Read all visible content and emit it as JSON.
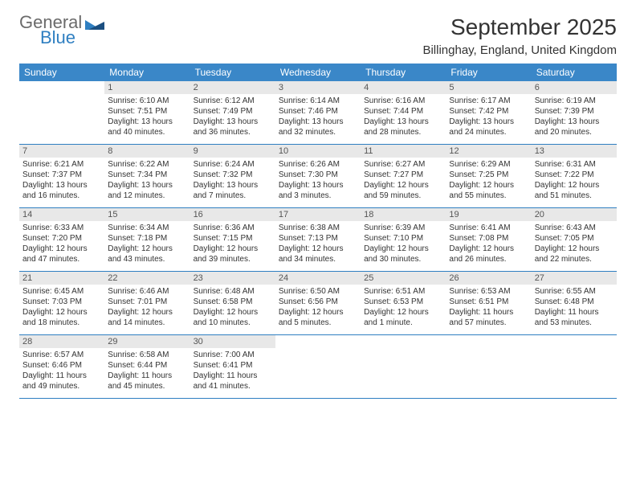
{
  "logo": {
    "general": "General",
    "blue": "Blue"
  },
  "title": "September 2025",
  "location": "Billinghay, England, United Kingdom",
  "colors": {
    "header_bg": "#3a87c8",
    "header_text": "#ffffff",
    "daynum_bg": "#e8e8e8",
    "border": "#2f7fc1",
    "logo_gray": "#6b6b6b",
    "logo_blue": "#2f7fc1",
    "text": "#333333"
  },
  "weekdays": [
    "Sunday",
    "Monday",
    "Tuesday",
    "Wednesday",
    "Thursday",
    "Friday",
    "Saturday"
  ],
  "weeks": [
    [
      {
        "num": "",
        "sunrise": "",
        "sunset": "",
        "daylight": ""
      },
      {
        "num": "1",
        "sunrise": "Sunrise: 6:10 AM",
        "sunset": "Sunset: 7:51 PM",
        "daylight": "Daylight: 13 hours and 40 minutes."
      },
      {
        "num": "2",
        "sunrise": "Sunrise: 6:12 AM",
        "sunset": "Sunset: 7:49 PM",
        "daylight": "Daylight: 13 hours and 36 minutes."
      },
      {
        "num": "3",
        "sunrise": "Sunrise: 6:14 AM",
        "sunset": "Sunset: 7:46 PM",
        "daylight": "Daylight: 13 hours and 32 minutes."
      },
      {
        "num": "4",
        "sunrise": "Sunrise: 6:16 AM",
        "sunset": "Sunset: 7:44 PM",
        "daylight": "Daylight: 13 hours and 28 minutes."
      },
      {
        "num": "5",
        "sunrise": "Sunrise: 6:17 AM",
        "sunset": "Sunset: 7:42 PM",
        "daylight": "Daylight: 13 hours and 24 minutes."
      },
      {
        "num": "6",
        "sunrise": "Sunrise: 6:19 AM",
        "sunset": "Sunset: 7:39 PM",
        "daylight": "Daylight: 13 hours and 20 minutes."
      }
    ],
    [
      {
        "num": "7",
        "sunrise": "Sunrise: 6:21 AM",
        "sunset": "Sunset: 7:37 PM",
        "daylight": "Daylight: 13 hours and 16 minutes."
      },
      {
        "num": "8",
        "sunrise": "Sunrise: 6:22 AM",
        "sunset": "Sunset: 7:34 PM",
        "daylight": "Daylight: 13 hours and 12 minutes."
      },
      {
        "num": "9",
        "sunrise": "Sunrise: 6:24 AM",
        "sunset": "Sunset: 7:32 PM",
        "daylight": "Daylight: 13 hours and 7 minutes."
      },
      {
        "num": "10",
        "sunrise": "Sunrise: 6:26 AM",
        "sunset": "Sunset: 7:30 PM",
        "daylight": "Daylight: 13 hours and 3 minutes."
      },
      {
        "num": "11",
        "sunrise": "Sunrise: 6:27 AM",
        "sunset": "Sunset: 7:27 PM",
        "daylight": "Daylight: 12 hours and 59 minutes."
      },
      {
        "num": "12",
        "sunrise": "Sunrise: 6:29 AM",
        "sunset": "Sunset: 7:25 PM",
        "daylight": "Daylight: 12 hours and 55 minutes."
      },
      {
        "num": "13",
        "sunrise": "Sunrise: 6:31 AM",
        "sunset": "Sunset: 7:22 PM",
        "daylight": "Daylight: 12 hours and 51 minutes."
      }
    ],
    [
      {
        "num": "14",
        "sunrise": "Sunrise: 6:33 AM",
        "sunset": "Sunset: 7:20 PM",
        "daylight": "Daylight: 12 hours and 47 minutes."
      },
      {
        "num": "15",
        "sunrise": "Sunrise: 6:34 AM",
        "sunset": "Sunset: 7:18 PM",
        "daylight": "Daylight: 12 hours and 43 minutes."
      },
      {
        "num": "16",
        "sunrise": "Sunrise: 6:36 AM",
        "sunset": "Sunset: 7:15 PM",
        "daylight": "Daylight: 12 hours and 39 minutes."
      },
      {
        "num": "17",
        "sunrise": "Sunrise: 6:38 AM",
        "sunset": "Sunset: 7:13 PM",
        "daylight": "Daylight: 12 hours and 34 minutes."
      },
      {
        "num": "18",
        "sunrise": "Sunrise: 6:39 AM",
        "sunset": "Sunset: 7:10 PM",
        "daylight": "Daylight: 12 hours and 30 minutes."
      },
      {
        "num": "19",
        "sunrise": "Sunrise: 6:41 AM",
        "sunset": "Sunset: 7:08 PM",
        "daylight": "Daylight: 12 hours and 26 minutes."
      },
      {
        "num": "20",
        "sunrise": "Sunrise: 6:43 AM",
        "sunset": "Sunset: 7:05 PM",
        "daylight": "Daylight: 12 hours and 22 minutes."
      }
    ],
    [
      {
        "num": "21",
        "sunrise": "Sunrise: 6:45 AM",
        "sunset": "Sunset: 7:03 PM",
        "daylight": "Daylight: 12 hours and 18 minutes."
      },
      {
        "num": "22",
        "sunrise": "Sunrise: 6:46 AM",
        "sunset": "Sunset: 7:01 PM",
        "daylight": "Daylight: 12 hours and 14 minutes."
      },
      {
        "num": "23",
        "sunrise": "Sunrise: 6:48 AM",
        "sunset": "Sunset: 6:58 PM",
        "daylight": "Daylight: 12 hours and 10 minutes."
      },
      {
        "num": "24",
        "sunrise": "Sunrise: 6:50 AM",
        "sunset": "Sunset: 6:56 PM",
        "daylight": "Daylight: 12 hours and 5 minutes."
      },
      {
        "num": "25",
        "sunrise": "Sunrise: 6:51 AM",
        "sunset": "Sunset: 6:53 PM",
        "daylight": "Daylight: 12 hours and 1 minute."
      },
      {
        "num": "26",
        "sunrise": "Sunrise: 6:53 AM",
        "sunset": "Sunset: 6:51 PM",
        "daylight": "Daylight: 11 hours and 57 minutes."
      },
      {
        "num": "27",
        "sunrise": "Sunrise: 6:55 AM",
        "sunset": "Sunset: 6:48 PM",
        "daylight": "Daylight: 11 hours and 53 minutes."
      }
    ],
    [
      {
        "num": "28",
        "sunrise": "Sunrise: 6:57 AM",
        "sunset": "Sunset: 6:46 PM",
        "daylight": "Daylight: 11 hours and 49 minutes."
      },
      {
        "num": "29",
        "sunrise": "Sunrise: 6:58 AM",
        "sunset": "Sunset: 6:44 PM",
        "daylight": "Daylight: 11 hours and 45 minutes."
      },
      {
        "num": "30",
        "sunrise": "Sunrise: 7:00 AM",
        "sunset": "Sunset: 6:41 PM",
        "daylight": "Daylight: 11 hours and 41 minutes."
      },
      {
        "num": "",
        "sunrise": "",
        "sunset": "",
        "daylight": ""
      },
      {
        "num": "",
        "sunrise": "",
        "sunset": "",
        "daylight": ""
      },
      {
        "num": "",
        "sunrise": "",
        "sunset": "",
        "daylight": ""
      },
      {
        "num": "",
        "sunrise": "",
        "sunset": "",
        "daylight": ""
      }
    ]
  ]
}
